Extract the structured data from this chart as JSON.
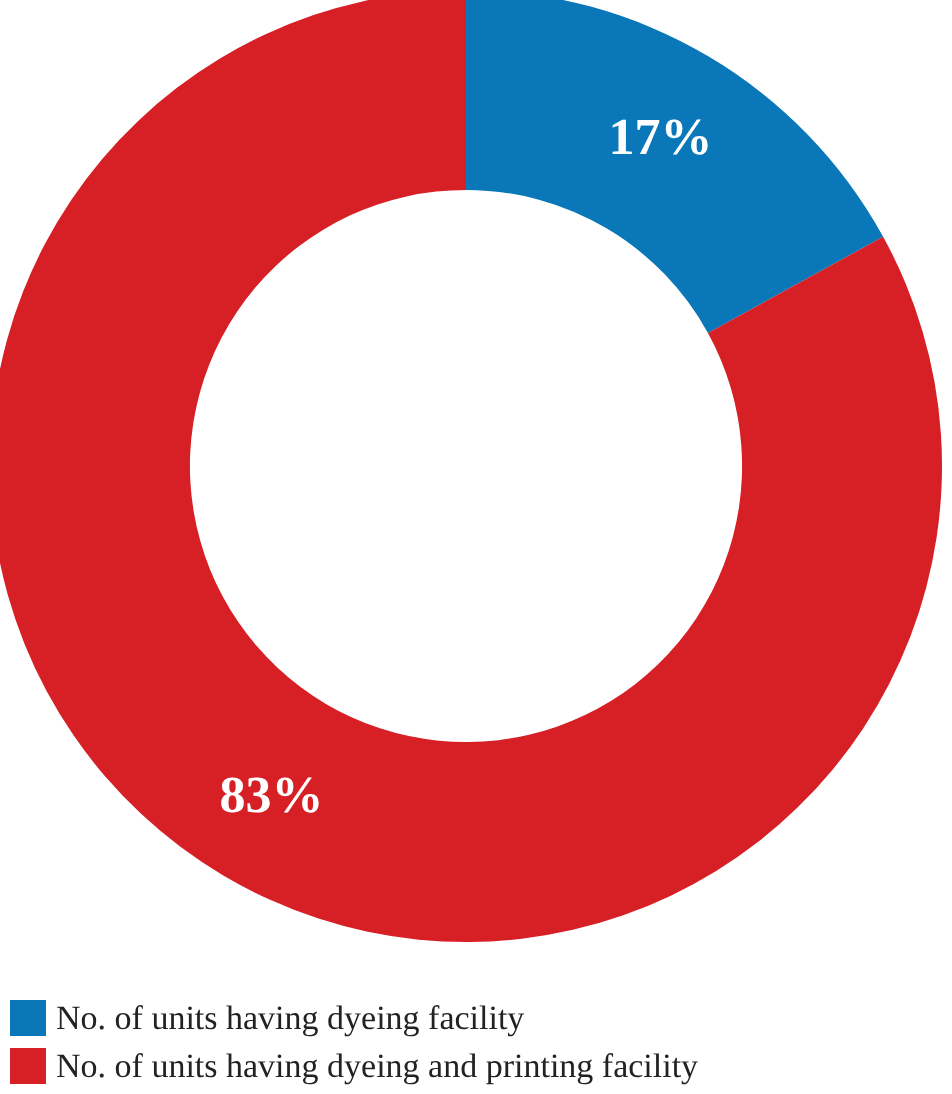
{
  "chart_data": {
    "type": "donut",
    "categories": [
      "No. of units having dyeing facility",
      "No. of units having dyeing and printing facility"
    ],
    "values": [
      17,
      83
    ],
    "colors": [
      "#0a77b8",
      "#d71f26"
    ],
    "value_labels": [
      "17%",
      "83%"
    ],
    "legend": "bottom left"
  }
}
